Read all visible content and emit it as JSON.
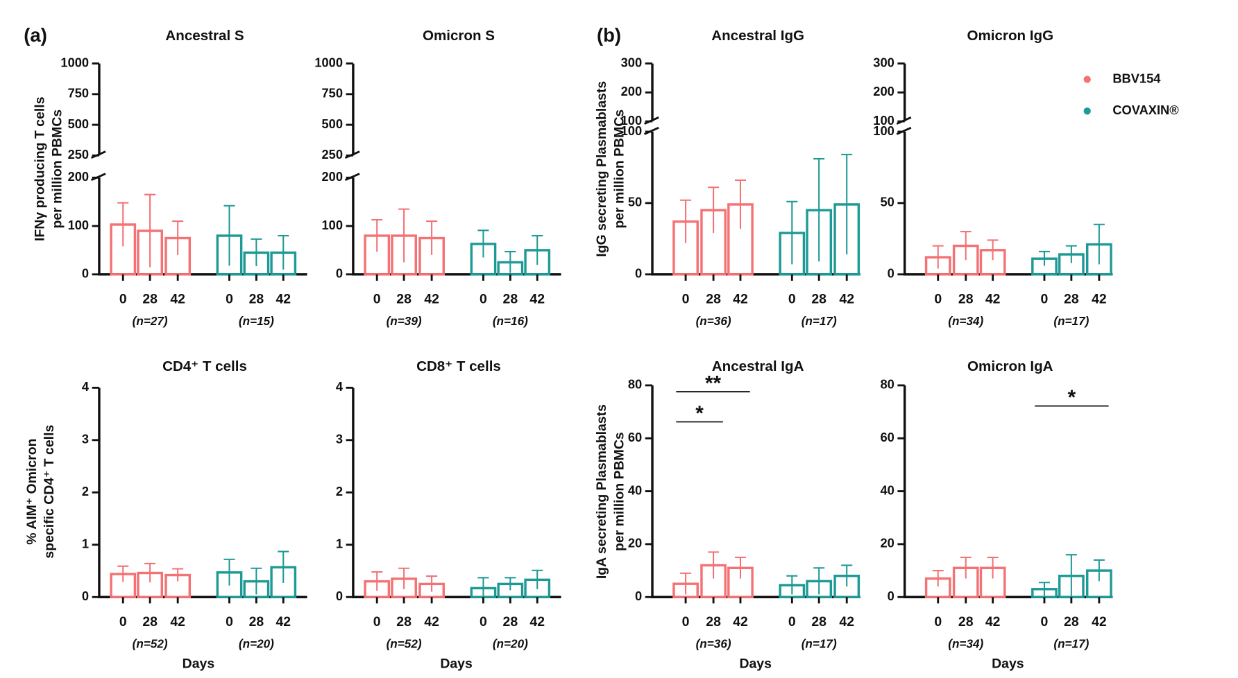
{
  "legend": [
    {
      "name": "BBV154",
      "color": "#f47174"
    },
    {
      "name": "COVAXIN®",
      "color": "#1e9a96"
    }
  ],
  "chart_data": [
    {
      "type": "bar",
      "panel": "(a)",
      "title": "Ancestral  S",
      "y_label": [
        "IFNγ producing T cells",
        "per million PBMCs"
      ],
      "categories": [
        "0",
        "28",
        "42"
      ],
      "yaxis": [
        {
          "ylim": [
            0,
            200
          ],
          "yticks": [
            0,
            100,
            200
          ]
        },
        {
          "ylim": [
            250,
            1000
          ],
          "yticks": [
            250,
            500,
            750,
            1000
          ]
        }
      ],
      "series": [
        {
          "values": [
            103,
            90,
            75
          ],
          "errors": [
            45,
            75,
            35
          ],
          "n_label": "(n=27)"
        },
        {
          "values": [
            80,
            45,
            45
          ],
          "errors": [
            62,
            28,
            35
          ],
          "n_label": "(n=15)"
        }
      ]
    },
    {
      "type": "bar",
      "title": "Omicron S",
      "categories": [
        "0",
        "28",
        "42"
      ],
      "yaxis": [
        {
          "ylim": [
            0,
            200
          ],
          "yticks": [
            0,
            100,
            200
          ]
        },
        {
          "ylim": [
            250,
            1000
          ],
          "yticks": [
            250,
            500,
            750,
            1000
          ]
        }
      ],
      "series": [
        {
          "values": [
            80,
            80,
            75
          ],
          "errors": [
            33,
            55,
            35
          ],
          "n_label": "(n=39)"
        },
        {
          "values": [
            63,
            25,
            50
          ],
          "errors": [
            28,
            22,
            30
          ],
          "n_label": "(n=16)"
        }
      ]
    },
    {
      "type": "bar",
      "panel": "(b)",
      "title": "Ancestral IgG",
      "y_label": [
        "IgG secreting Plasmablasts",
        "per million PBMCs"
      ],
      "categories": [
        "0",
        "28",
        "42"
      ],
      "yaxis": [
        {
          "ylim": [
            0,
            100
          ],
          "yticks": [
            0,
            50,
            100
          ]
        },
        {
          "ylim": [
            100,
            300
          ],
          "yticks": [
            100,
            200,
            300
          ]
        }
      ],
      "series": [
        {
          "values": [
            37,
            45,
            49
          ],
          "errors": [
            15,
            16,
            17
          ],
          "n_label": "(n=36)"
        },
        {
          "values": [
            29,
            45,
            49
          ],
          "errors": [
            22,
            36,
            35
          ],
          "n_label": "(n=17)"
        }
      ]
    },
    {
      "type": "bar",
      "title": "Omicron IgG",
      "categories": [
        "0",
        "28",
        "42"
      ],
      "yaxis": [
        {
          "ylim": [
            0,
            100
          ],
          "yticks": [
            0,
            50,
            100
          ]
        },
        {
          "ylim": [
            100,
            300
          ],
          "yticks": [
            100,
            200,
            300
          ]
        }
      ],
      "series": [
        {
          "values": [
            12,
            20,
            17
          ],
          "errors": [
            8,
            10,
            7
          ],
          "n_label": "(n=34)"
        },
        {
          "values": [
            11,
            14,
            21
          ],
          "errors": [
            5,
            6,
            14
          ],
          "n_label": "(n=17)"
        }
      ]
    },
    {
      "type": "bar",
      "title": "CD4⁺ T cells",
      "y_label": [
        "% AIM⁺ Omicron",
        "specific CD4⁺ T cells"
      ],
      "x_label": "Days",
      "categories": [
        "0",
        "28",
        "42"
      ],
      "yaxis": [
        {
          "ylim": [
            0,
            4
          ],
          "yticks": [
            0,
            1,
            2,
            3,
            4
          ]
        }
      ],
      "series": [
        {
          "values": [
            0.44,
            0.46,
            0.42
          ],
          "errors": [
            0.15,
            0.18,
            0.12
          ],
          "n_label": "(n=52)"
        },
        {
          "values": [
            0.47,
            0.3,
            0.57
          ],
          "errors": [
            0.25,
            0.25,
            0.3
          ],
          "n_label": "(n=20)"
        }
      ]
    },
    {
      "type": "bar",
      "title": "CD8⁺ T cells",
      "x_label": "Days",
      "categories": [
        "0",
        "28",
        "42"
      ],
      "yaxis": [
        {
          "ylim": [
            0,
            4
          ],
          "yticks": [
            0,
            1,
            2,
            3,
            4
          ]
        }
      ],
      "series": [
        {
          "values": [
            0.3,
            0.35,
            0.25
          ],
          "errors": [
            0.18,
            0.2,
            0.15
          ],
          "n_label": "(n=52)"
        },
        {
          "values": [
            0.17,
            0.25,
            0.33
          ],
          "errors": [
            0.2,
            0.12,
            0.18
          ],
          "n_label": "(n=20)"
        }
      ]
    },
    {
      "type": "bar",
      "title": "Ancestral IgA",
      "y_label": [
        "IgA secreting Plasmablasts",
        "per million PBMCs"
      ],
      "x_label": "Days",
      "categories": [
        "0",
        "28",
        "42"
      ],
      "yaxis": [
        {
          "ylim": [
            0,
            80
          ],
          "yticks": [
            0,
            20,
            40,
            60,
            80
          ]
        }
      ],
      "annotations": [
        {
          "text": "**",
          "series": 0,
          "between": [
            "0",
            "42"
          ]
        },
        {
          "text": "*",
          "series": 0,
          "between": [
            "0",
            "28"
          ]
        }
      ],
      "series": [
        {
          "values": [
            5,
            12,
            11
          ],
          "errors": [
            4,
            5,
            4
          ],
          "n_label": "(n=36)"
        },
        {
          "values": [
            4.5,
            6,
            8
          ],
          "errors": [
            3.5,
            5,
            4
          ],
          "n_label": "(n=17)"
        }
      ]
    },
    {
      "type": "bar",
      "title": "Omicron IgA",
      "x_label": "Days",
      "categories": [
        "0",
        "28",
        "42"
      ],
      "yaxis": [
        {
          "ylim": [
            0,
            80
          ],
          "yticks": [
            0,
            20,
            40,
            60,
            80
          ]
        }
      ],
      "annotations": [
        {
          "text": "*",
          "series": 1,
          "between": [
            "0",
            "42"
          ]
        }
      ],
      "series": [
        {
          "values": [
            7,
            11,
            11
          ],
          "errors": [
            3,
            4,
            4
          ],
          "n_label": "(n=34)"
        },
        {
          "values": [
            3,
            8,
            10
          ],
          "errors": [
            2.5,
            8,
            4
          ],
          "n_label": "(n=17)"
        }
      ]
    }
  ]
}
